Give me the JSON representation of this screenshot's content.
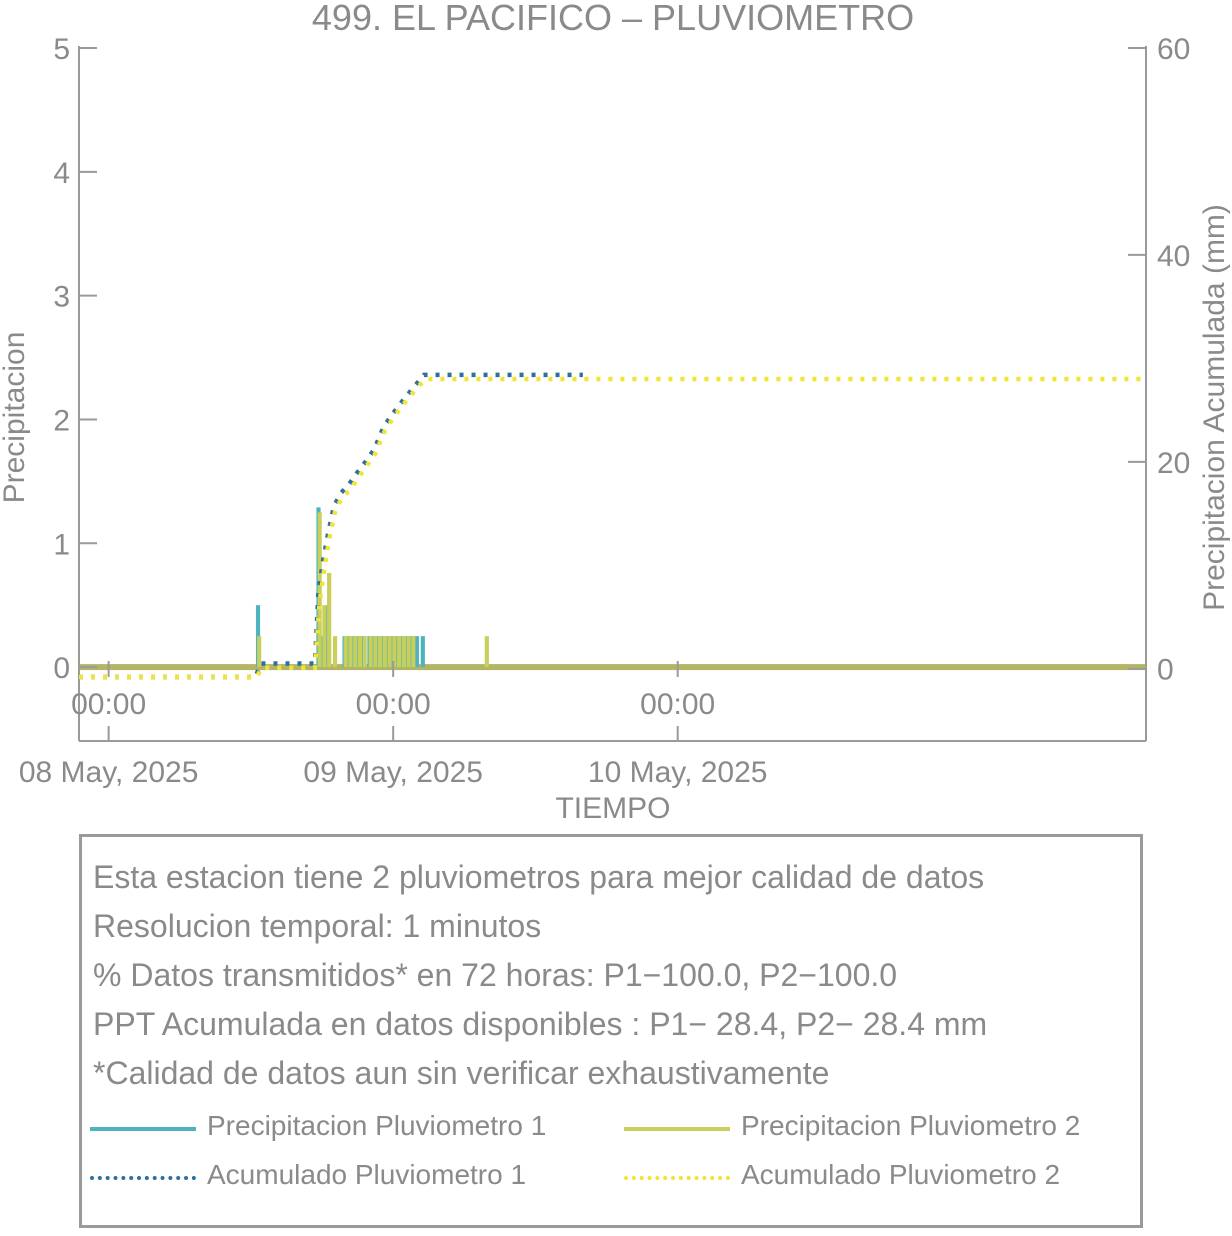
{
  "chart_data": {
    "type": "bar",
    "title": "499. EL PACIFICO – PLUVIOMETRO",
    "xlabel": "TIEMPO",
    "ylabel": "Precipitacion",
    "y2label": "Precipitacion Acumulada (mm)",
    "ylim": [
      -0.08,
      5
    ],
    "y2lim": [
      -0.8,
      60
    ],
    "yticks": [
      "0",
      "1",
      "2",
      "3",
      "4",
      "5"
    ],
    "y2ticks": [
      "0",
      "20",
      "40",
      "60"
    ],
    "time_ticks": [
      "00:00",
      "00:00",
      "00:00"
    ],
    "date_ticks": [
      "08 May, 2025",
      "09 May, 2025",
      "10 May, 2025"
    ],
    "x_unit": "hours from 2025-05-08 00:00",
    "xlim": [
      -2.5,
      87.5
    ],
    "bar_width": 0.35,
    "series": [
      {
        "name": "Precipitacion Pluviometro 1",
        "kind": "bar",
        "color": "#4fb3bf",
        "x": [
          12.6,
          17.7,
          18.0,
          18.5,
          19.9,
          20.3,
          20.7,
          21.1,
          21.5,
          22.0,
          22.4,
          22.8,
          23.2,
          23.6,
          24.0,
          24.4,
          24.8,
          25.2,
          25.6,
          26.0,
          26.5
        ],
        "values": [
          0.5,
          1.29,
          0.25,
          0.5,
          0.25,
          0.25,
          0.25,
          0.25,
          0.25,
          0.25,
          0.25,
          0.25,
          0.25,
          0.25,
          0.25,
          0.25,
          0.25,
          0.25,
          0.25,
          0.25,
          0.25
        ]
      },
      {
        "name": "Precipitacion Pluviometro 2",
        "kind": "bar",
        "color": "#c8cf5b",
        "x": [
          12.7,
          17.8,
          18.2,
          18.6,
          19.1,
          20.0,
          20.4,
          20.8,
          21.2,
          21.6,
          22.1,
          22.5,
          22.9,
          23.3,
          23.7,
          24.1,
          24.5,
          24.9,
          25.3,
          25.7,
          31.9
        ],
        "values": [
          0.25,
          1.25,
          0.5,
          0.76,
          0.25,
          0.25,
          0.25,
          0.25,
          0.25,
          0.25,
          0.25,
          0.25,
          0.25,
          0.25,
          0.25,
          0.25,
          0.25,
          0.25,
          0.25,
          0.25,
          0.25
        ]
      },
      {
        "name": "Acumulado Pluviometro 1",
        "kind": "line-dotted",
        "axis": "right",
        "color": "#2e6fa0",
        "x": [
          -2.5,
          12.4,
          12.8,
          17.4,
          17.7,
          18.1,
          18.5,
          19.0,
          19.6,
          20.2,
          20.8,
          21.6,
          22.4,
          23.2,
          24.0,
          24.8,
          25.8,
          26.6,
          40.0
        ],
        "values": [
          -0.8,
          -0.8,
          0.5,
          0.5,
          7.5,
          10.5,
          13.0,
          15.7,
          17.0,
          17.7,
          18.7,
          19.9,
          21.2,
          23.4,
          24.7,
          25.9,
          27.3,
          28.4,
          28.4
        ]
      },
      {
        "name": "Acumulado Pluviometro 2",
        "kind": "line-dotted",
        "axis": "right",
        "color": "#f2e337",
        "x": [
          -2.5,
          12.5,
          12.9,
          17.4,
          17.8,
          18.2,
          18.6,
          19.1,
          19.7,
          20.3,
          20.9,
          21.7,
          22.5,
          23.3,
          24.1,
          24.9,
          25.9,
          26.7,
          87.5
        ],
        "values": [
          -0.8,
          -0.8,
          0.1,
          0.1,
          6.5,
          9.7,
          12.5,
          15.2,
          16.6,
          17.2,
          18.2,
          19.5,
          20.8,
          23.0,
          24.4,
          25.6,
          27.0,
          28.0,
          28.0
        ]
      }
    ],
    "grid": false
  },
  "info": {
    "lines": [
      "Esta estacion tiene 2 pluviometros para mejor calidad de datos",
      "Resolucion temporal: 1 minutos",
      "% Datos transmitidos* en 72 horas: P1−100.0, P2−100.0",
      "PPT Acumulada en datos disponibles : P1− 28.4, P2− 28.4 mm",
      "*Calidad de datos aun sin verificar exhaustivamente"
    ]
  },
  "legend": {
    "items": [
      {
        "label": "Precipitacion Pluviometro 1",
        "color": "#4fb3bf",
        "style": "solid"
      },
      {
        "label": "Precipitacion Pluviometro 2",
        "color": "#c8cf5b",
        "style": "solid"
      },
      {
        "label": "Acumulado Pluviometro 1",
        "color": "#2e6fa0",
        "style": "dotted"
      },
      {
        "label": "Acumulado Pluviometro 2",
        "color": "#f2e337",
        "style": "dotted"
      }
    ]
  },
  "colors": {
    "axis": "#9a9a9a",
    "text": "#8a8a8a",
    "baseline": "#a6a84a"
  }
}
